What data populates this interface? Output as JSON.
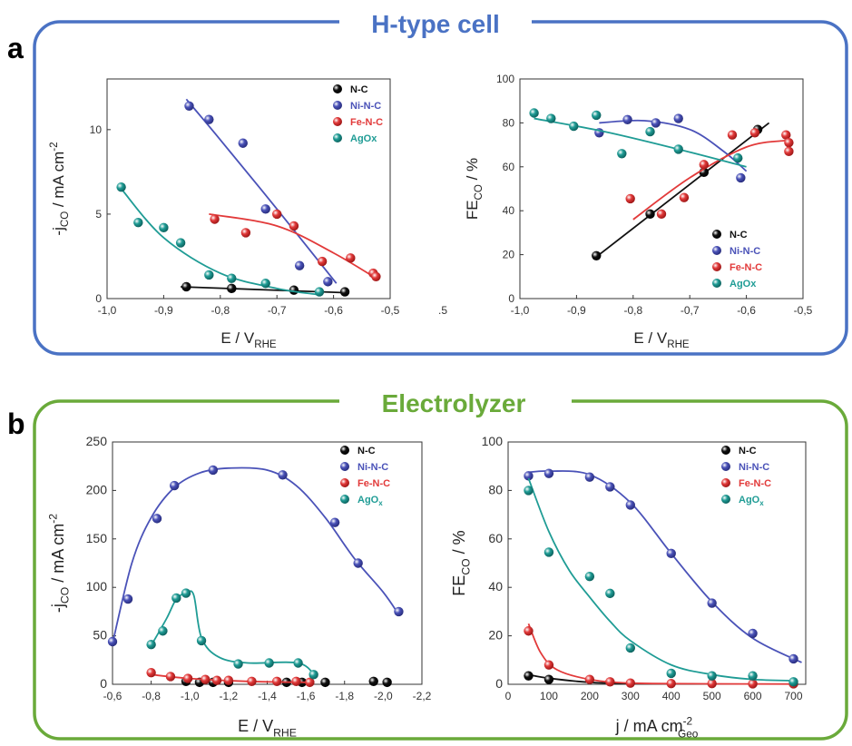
{
  "panels": [
    {
      "letter": "a",
      "title": "H-type cell",
      "color": "#4a72c4"
    },
    {
      "letter": "b",
      "title": "Electrolyzer",
      "color": "#6aaa3a"
    }
  ],
  "series_colors": {
    "N-C": "#111111",
    "Ni-N-C": "#4a52b8",
    "Fe-N-C": "#e23a3a",
    "AgOx": "#1f9c95"
  },
  "chart_data": [
    {
      "id": "a-left",
      "type": "scatter",
      "ylabel": "-j_CO / mA cm^-2",
      "xlabel": "E / V_RHE",
      "xlim": [
        -1.0,
        -0.5
      ],
      "ylim": [
        0,
        13
      ],
      "xticks": [
        -1.0,
        -0.9,
        -0.8,
        -0.7,
        -0.6,
        -0.5
      ],
      "xtick_labels": [
        "-1,0",
        "-0,9",
        "-0,8",
        "-0,7",
        "-0,6",
        "-0,5"
      ],
      "yticks": [
        0,
        5,
        10
      ],
      "ytick_labels": [
        "0",
        "5",
        "10"
      ],
      "stray_label": ".5",
      "legend": "top-right",
      "series": [
        {
          "name": "N-C",
          "points": [
            [
              -0.86,
              0.7
            ],
            [
              -0.78,
              0.6
            ],
            [
              -0.67,
              0.5
            ],
            [
              -0.58,
              0.4
            ]
          ],
          "fit": [
            [
              -0.87,
              0.7
            ],
            [
              -0.58,
              0.35
            ]
          ]
        },
        {
          "name": "Ni-N-C",
          "points": [
            [
              -0.855,
              11.4
            ],
            [
              -0.82,
              10.6
            ],
            [
              -0.76,
              9.2
            ],
            [
              -0.72,
              5.3
            ],
            [
              -0.66,
              1.95
            ],
            [
              -0.61,
              1.0
            ]
          ],
          "fit": [
            [
              -0.86,
              11.8
            ],
            [
              -0.8,
              9.4
            ],
            [
              -0.7,
              5.3
            ],
            [
              -0.595,
              0.9
            ]
          ]
        },
        {
          "name": "Fe-N-C",
          "points": [
            [
              -0.81,
              4.7
            ],
            [
              -0.755,
              3.9
            ],
            [
              -0.7,
              5.0
            ],
            [
              -0.67,
              4.3
            ],
            [
              -0.62,
              2.2
            ],
            [
              -0.57,
              2.4
            ],
            [
              -0.53,
              1.5
            ],
            [
              -0.525,
              1.3
            ]
          ],
          "fit": [
            [
              -0.82,
              5.0
            ],
            [
              -0.7,
              4.3
            ],
            [
              -0.6,
              2.7
            ],
            [
              -0.52,
              1.1
            ]
          ]
        },
        {
          "name": "AgOx",
          "points": [
            [
              -0.975,
              6.6
            ],
            [
              -0.945,
              4.5
            ],
            [
              -0.9,
              4.2
            ],
            [
              -0.87,
              3.3
            ],
            [
              -0.82,
              1.4
            ],
            [
              -0.78,
              1.2
            ],
            [
              -0.72,
              0.9
            ],
            [
              -0.625,
              0.4
            ]
          ],
          "fit": [
            [
              -0.975,
              6.5
            ],
            [
              -0.9,
              3.6
            ],
            [
              -0.8,
              1.5
            ],
            [
              -0.7,
              0.6
            ],
            [
              -0.63,
              0.25
            ]
          ]
        }
      ]
    },
    {
      "id": "a-right",
      "type": "scatter",
      "ylabel": "FE_CO / %",
      "xlabel": "E / V_RHE",
      "xlim": [
        -1.0,
        -0.5
      ],
      "ylim": [
        0,
        100
      ],
      "xticks": [
        -1.0,
        -0.9,
        -0.8,
        -0.7,
        -0.6,
        -0.5
      ],
      "xtick_labels": [
        "-1,0",
        "-0,9",
        "-0,8",
        "-0,7",
        "-0,6",
        "-0,5"
      ],
      "yticks": [
        0,
        20,
        40,
        60,
        80,
        100
      ],
      "ytick_labels": [
        "0",
        "20",
        "40",
        "60",
        "80",
        "100"
      ],
      "legend": "bottom-right",
      "series": [
        {
          "name": "N-C",
          "points": [
            [
              -0.865,
              19.5
            ],
            [
              -0.77,
              38.5
            ],
            [
              -0.675,
              57.5
            ],
            [
              -0.58,
              77.0
            ]
          ],
          "fit": [
            [
              -0.87,
              18
            ],
            [
              -0.56,
              80
            ]
          ]
        },
        {
          "name": "Ni-N-C",
          "points": [
            [
              -0.86,
              75.5
            ],
            [
              -0.81,
              81.5
            ],
            [
              -0.76,
              80.0
            ],
            [
              -0.72,
              82.0
            ],
            [
              -0.61,
              55.0
            ]
          ],
          "fit": [
            [
              -0.86,
              80
            ],
            [
              -0.78,
              81
            ],
            [
              -0.7,
              77
            ],
            [
              -0.64,
              67
            ],
            [
              -0.6,
              58
            ]
          ]
        },
        {
          "name": "Fe-N-C",
          "points": [
            [
              -0.805,
              45.5
            ],
            [
              -0.75,
              38.5
            ],
            [
              -0.71,
              46.0
            ],
            [
              -0.675,
              61.0
            ],
            [
              -0.625,
              74.5
            ],
            [
              -0.585,
              75.5
            ],
            [
              -0.53,
              74.5
            ],
            [
              -0.525,
              71.0
            ],
            [
              -0.525,
              67.0
            ]
          ],
          "fit": [
            [
              -0.8,
              36
            ],
            [
              -0.7,
              55
            ],
            [
              -0.6,
              69
            ],
            [
              -0.53,
              72
            ]
          ]
        },
        {
          "name": "AgOx",
          "points": [
            [
              -0.975,
              84.5
            ],
            [
              -0.945,
              82.0
            ],
            [
              -0.905,
              78.5
            ],
            [
              -0.865,
              83.5
            ],
            [
              -0.82,
              66.0
            ],
            [
              -0.77,
              76.0
            ],
            [
              -0.72,
              68.0
            ],
            [
              -0.615,
              64.0
            ]
          ],
          "fit": [
            [
              -0.975,
              82
            ],
            [
              -0.85,
              76
            ],
            [
              -0.72,
              68
            ],
            [
              -0.6,
              60
            ]
          ]
        }
      ]
    },
    {
      "id": "b-left",
      "type": "scatter",
      "ylabel": "-j_CO / mA cm^-2",
      "xlabel": "E / V_RHE",
      "xlim": [
        -0.6,
        -2.2
      ],
      "ylim": [
        0,
        250
      ],
      "xticks": [
        -0.6,
        -0.8,
        -1.0,
        -1.2,
        -1.4,
        -1.6,
        -1.8,
        -2.0,
        -2.2
      ],
      "xtick_labels": [
        "-0,6",
        "-0,8",
        "-1,0",
        "-1,2",
        "-1,4",
        "-1,6",
        "-1,8",
        "-2,0",
        "-2,2"
      ],
      "yticks": [
        0,
        50,
        100,
        150,
        200,
        250
      ],
      "ytick_labels": [
        "0",
        "50",
        "100",
        "150",
        "200",
        "250"
      ],
      "legend": "top-right",
      "series": [
        {
          "name": "N-C",
          "points": [
            [
              -0.98,
              3
            ],
            [
              -1.05,
              2
            ],
            [
              -1.12,
              2
            ],
            [
              -1.2,
              2
            ],
            [
              -1.5,
              2
            ],
            [
              -1.58,
              2
            ],
            [
              -1.7,
              2
            ],
            [
              -1.95,
              3
            ],
            [
              -2.02,
              2
            ]
          ],
          "fit": []
        },
        {
          "name": "Ni-N-C",
          "points": [
            [
              -0.6,
              44
            ],
            [
              -0.68,
              88
            ],
            [
              -0.83,
              171
            ],
            [
              -0.92,
              205
            ],
            [
              -1.12,
              221
            ],
            [
              -1.48,
              216
            ],
            [
              -1.75,
              167
            ],
            [
              -1.87,
              125
            ],
            [
              -2.08,
              75
            ]
          ],
          "fit": [
            [
              -0.6,
              42
            ],
            [
              -0.7,
              125
            ],
            [
              -0.8,
              172
            ],
            [
              -0.92,
              203
            ],
            [
              -1.05,
              218
            ],
            [
              -1.2,
              223
            ],
            [
              -1.4,
              221
            ],
            [
              -1.55,
              205
            ],
            [
              -1.7,
              172
            ],
            [
              -1.85,
              130
            ],
            [
              -2.0,
              95
            ],
            [
              -2.08,
              72
            ]
          ]
        },
        {
          "name": "Fe-N-C",
          "points": [
            [
              -0.8,
              12
            ],
            [
              -0.9,
              8
            ],
            [
              -0.99,
              6
            ],
            [
              -1.08,
              5
            ],
            [
              -1.14,
              4
            ],
            [
              -1.2,
              4
            ],
            [
              -1.32,
              3
            ],
            [
              -1.45,
              3
            ],
            [
              -1.55,
              3
            ],
            [
              -1.62,
              2
            ]
          ],
          "fit": [
            [
              -0.8,
              10
            ],
            [
              -1.0,
              6
            ],
            [
              -1.3,
              3
            ],
            [
              -1.63,
              2
            ]
          ]
        },
        {
          "name": "AgOx",
          "points": [
            [
              -0.8,
              41
            ],
            [
              -0.86,
              55
            ],
            [
              -0.93,
              89
            ],
            [
              -0.98,
              94
            ],
            [
              -1.06,
              45
            ],
            [
              -1.25,
              21
            ],
            [
              -1.41,
              22
            ],
            [
              -1.56,
              22
            ],
            [
              -1.64,
              10
            ]
          ],
          "fit": [
            [
              -0.8,
              40
            ],
            [
              -0.88,
              68
            ],
            [
              -0.93,
              88
            ],
            [
              -0.98,
              94
            ],
            [
              -1.02,
              92
            ],
            [
              -1.06,
              48
            ],
            [
              -1.15,
              28
            ],
            [
              -1.3,
              22
            ],
            [
              -1.56,
              22
            ],
            [
              -1.65,
              8
            ]
          ]
        }
      ]
    },
    {
      "id": "b-right",
      "type": "scatter",
      "ylabel": "FE_CO / %",
      "xlabel": "j / mA cm^-2_Geo",
      "xlim": [
        0,
        730
      ],
      "ylim": [
        0,
        100
      ],
      "xticks": [
        0,
        100,
        200,
        300,
        400,
        500,
        600,
        700
      ],
      "xtick_labels": [
        "0",
        "100",
        "200",
        "300",
        "400",
        "500",
        "600",
        "700"
      ],
      "yticks": [
        0,
        20,
        40,
        60,
        80,
        100
      ],
      "ytick_labels": [
        "0",
        "20",
        "40",
        "60",
        "80",
        "100"
      ],
      "legend": "top-right",
      "series": [
        {
          "name": "N-C",
          "points": [
            [
              50,
              3.5
            ],
            [
              100,
              2.0
            ]
          ],
          "fit": [
            [
              50,
              4
            ],
            [
              100,
              2.5
            ],
            [
              200,
              0.8
            ],
            [
              300,
              0.3
            ]
          ]
        },
        {
          "name": "Ni-N-C",
          "points": [
            [
              50,
              86
            ],
            [
              100,
              87
            ],
            [
              200,
              85.5
            ],
            [
              250,
              81.5
            ],
            [
              300,
              74
            ],
            [
              400,
              54
            ],
            [
              500,
              33.5
            ],
            [
              600,
              21
            ],
            [
              700,
              10.5
            ]
          ],
          "fit": [
            [
              50,
              87.5
            ],
            [
              100,
              88
            ],
            [
              200,
              86.5
            ],
            [
              300,
              75
            ],
            [
              400,
              54
            ],
            [
              500,
              34
            ],
            [
              600,
              19
            ],
            [
              720,
              9
            ]
          ]
        },
        {
          "name": "Fe-N-C",
          "points": [
            [
              50,
              22
            ],
            [
              100,
              8
            ],
            [
              200,
              2
            ],
            [
              250,
              1
            ],
            [
              300,
              0.5
            ],
            [
              400,
              0.3
            ],
            [
              500,
              0.3
            ],
            [
              600,
              0.2
            ],
            [
              700,
              0.2
            ]
          ],
          "fit": [
            [
              50,
              25
            ],
            [
              80,
              13
            ],
            [
              120,
              6
            ],
            [
              200,
              2
            ],
            [
              300,
              0.5
            ],
            [
              500,
              0.2
            ],
            [
              700,
              0.1
            ]
          ]
        },
        {
          "name": "AgOx",
          "points": [
            [
              50,
              80
            ],
            [
              100,
              54.5
            ],
            [
              200,
              44.5
            ],
            [
              250,
              37.5
            ],
            [
              300,
              15
            ],
            [
              400,
              4.5
            ],
            [
              500,
              3.5
            ],
            [
              600,
              3.5
            ],
            [
              700,
              1
            ]
          ],
          "fit": [
            [
              50,
              85
            ],
            [
              100,
              63
            ],
            [
              150,
              47
            ],
            [
              200,
              36
            ],
            [
              250,
              26
            ],
            [
              300,
              18
            ],
            [
              400,
              8
            ],
            [
              500,
              4
            ],
            [
              600,
              2
            ],
            [
              700,
              1.5
            ]
          ]
        }
      ]
    }
  ]
}
